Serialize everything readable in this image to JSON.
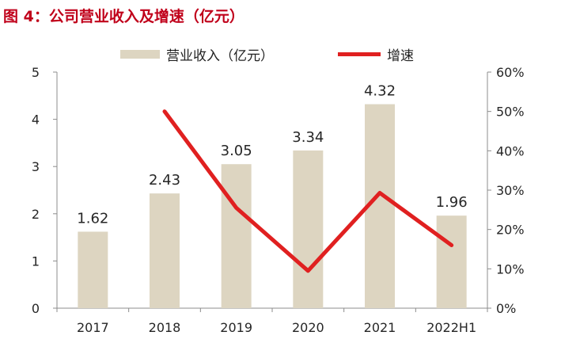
{
  "figure": {
    "title": "图 4：公司营业收入及增速（亿元）"
  },
  "legend": {
    "bar_label": "营业收入（亿元）",
    "line_label": "增速"
  },
  "colors": {
    "bar": "#ddd5c1",
    "line": "#e02020",
    "title": "#c0001a",
    "axis": "#8c8c8c",
    "text": "#262626"
  },
  "chart_data": {
    "type": "bar",
    "categories": [
      "2017",
      "2018",
      "2019",
      "2020",
      "2021",
      "2022H1"
    ],
    "series": [
      {
        "name": "营业收入（亿元）",
        "type": "bar",
        "axis": "left",
        "values": [
          1.62,
          2.43,
          3.05,
          3.34,
          4.32,
          1.96
        ],
        "data_labels": [
          "1.62",
          "2.43",
          "3.05",
          "3.34",
          "4.32",
          "1.96"
        ]
      },
      {
        "name": "增速",
        "type": "line",
        "axis": "right",
        "values": [
          null,
          0.5,
          0.255,
          0.095,
          0.293,
          0.16
        ]
      }
    ],
    "y_left": {
      "min": 0,
      "max": 5,
      "ticks": [
        "0",
        "1",
        "2",
        "3",
        "4",
        "5"
      ]
    },
    "y_right": {
      "min": 0,
      "max": 0.6,
      "ticks": [
        "0%",
        "10%",
        "20%",
        "30%",
        "40%",
        "50%",
        "60%"
      ]
    },
    "grid": false,
    "legend_position": "top"
  }
}
